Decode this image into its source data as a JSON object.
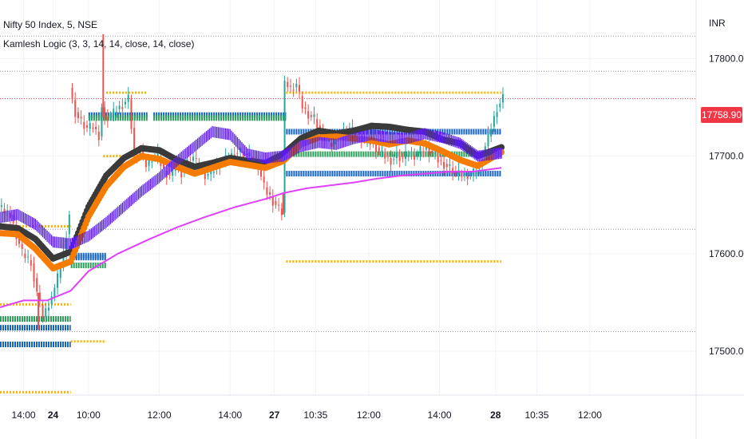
{
  "header": {
    "symbol_line": "Nifty 50 Index, 5, NSE",
    "indicator_line": "Kamlesh Logic (3, 3, 14, 14, close, 14, close)",
    "currency": "INR"
  },
  "last_price": {
    "label": "17758.90",
    "value": 17758.9,
    "color": "#f23645"
  },
  "colors": {
    "up_candle": "#26a69a",
    "down_candle": "#ef5350",
    "grid": "#f0f3fa",
    "axis_text": "#131722",
    "dotted_level": "#9598a1"
  },
  "chart_data": {
    "type": "line",
    "title": "",
    "ylabel": "",
    "xlabel": "",
    "ylim": [
      17455,
      17860
    ],
    "y_ticks": [
      17500,
      17600,
      17700,
      17800
    ],
    "y_tick_labels": [
      "17500.00",
      "17600.00",
      "17700.00",
      "17800.00"
    ],
    "x_tick_labels": [
      {
        "label": "14:00",
        "x": 8
      },
      {
        "label": "24",
        "x": 18
      },
      {
        "label": "10:00",
        "x": 30
      },
      {
        "label": "12:00",
        "x": 54
      },
      {
        "label": "14:00",
        "x": 78
      },
      {
        "label": "27",
        "x": 93
      },
      {
        "label": "10:35",
        "x": 107
      },
      {
        "label": "12:00",
        "x": 125
      },
      {
        "label": "14:00",
        "x": 149
      },
      {
        "label": "28",
        "x": 168
      },
      {
        "label": "10:35",
        "x": 182
      },
      {
        "label": "12:00",
        "x": 200
      }
    ],
    "dotted_level_lines": [
      17823,
      17787,
      17625,
      17520
    ],
    "x_visible_range": [
      0,
      236
    ],
    "candles_end": 172,
    "series": [
      {
        "name": "",
        "color": "#3a3a3a",
        "style": "dots",
        "points": [
          [
            0,
            17628
          ],
          [
            6,
            17626
          ],
          [
            12,
            17615
          ],
          [
            18,
            17595
          ],
          [
            24,
            17602
          ],
          [
            30,
            17648
          ],
          [
            36,
            17680
          ],
          [
            42,
            17698
          ],
          [
            48,
            17708
          ],
          [
            54,
            17706
          ],
          [
            60,
            17696
          ],
          [
            66,
            17689
          ],
          [
            72,
            17693
          ],
          [
            78,
            17698
          ],
          [
            84,
            17695
          ],
          [
            90,
            17693
          ],
          [
            96,
            17702
          ],
          [
            102,
            17718
          ],
          [
            108,
            17726
          ],
          [
            114,
            17723
          ],
          [
            120,
            17726
          ],
          [
            126,
            17731
          ],
          [
            132,
            17730
          ],
          [
            138,
            17727
          ],
          [
            144,
            17725
          ],
          [
            150,
            17717
          ],
          [
            156,
            17713
          ],
          [
            162,
            17700
          ],
          [
            170,
            17709
          ]
        ]
      },
      {
        "name": "",
        "color": "#f57c00",
        "style": "dots",
        "points": [
          [
            0,
            17621
          ],
          [
            6,
            17620
          ],
          [
            12,
            17605
          ],
          [
            18,
            17585
          ],
          [
            24,
            17592
          ],
          [
            30,
            17638
          ],
          [
            36,
            17669
          ],
          [
            42,
            17689
          ],
          [
            48,
            17700
          ],
          [
            54,
            17697
          ],
          [
            60,
            17689
          ],
          [
            66,
            17682
          ],
          [
            72,
            17688
          ],
          [
            78,
            17694
          ],
          [
            84,
            17691
          ],
          [
            90,
            17688
          ],
          [
            96,
            17695
          ],
          [
            102,
            17712
          ],
          [
            108,
            17719
          ],
          [
            114,
            17720
          ],
          [
            120,
            17718
          ],
          [
            126,
            17716
          ],
          [
            132,
            17712
          ],
          [
            138,
            17716
          ],
          [
            144,
            17713
          ],
          [
            150,
            17705
          ],
          [
            156,
            17696
          ],
          [
            162,
            17690
          ],
          [
            170,
            17704
          ]
        ]
      },
      {
        "name": "",
        "color": "#5d1ef0",
        "style": "dots",
        "points": [
          [
            0,
            17637
          ],
          [
            6,
            17640
          ],
          [
            12,
            17630
          ],
          [
            18,
            17612
          ],
          [
            24,
            17610
          ],
          [
            30,
            17618
          ],
          [
            36,
            17632
          ],
          [
            42,
            17648
          ],
          [
            48,
            17664
          ],
          [
            54,
            17678
          ],
          [
            60,
            17695
          ],
          [
            66,
            17710
          ],
          [
            72,
            17725
          ],
          [
            78,
            17722
          ],
          [
            84,
            17702
          ],
          [
            90,
            17698
          ],
          [
            96,
            17700
          ],
          [
            102,
            17710
          ],
          [
            108,
            17714
          ],
          [
            114,
            17712
          ],
          [
            120,
            17718
          ],
          [
            126,
            17722
          ],
          [
            132,
            17719
          ],
          [
            138,
            17718
          ],
          [
            144,
            17723
          ],
          [
            150,
            17719
          ],
          [
            156,
            17713
          ],
          [
            162,
            17700
          ],
          [
            170,
            17703
          ]
        ]
      },
      {
        "name": "",
        "color": "#e040fb",
        "style": "line",
        "points": [
          [
            0,
            17545
          ],
          [
            8,
            17552
          ],
          [
            16,
            17552
          ],
          [
            24,
            17562
          ],
          [
            30,
            17582
          ],
          [
            40,
            17600
          ],
          [
            50,
            17614
          ],
          [
            60,
            17627
          ],
          [
            70,
            17638
          ],
          [
            80,
            17648
          ],
          [
            90,
            17656
          ],
          [
            96,
            17662
          ],
          [
            104,
            17667
          ],
          [
            112,
            17670
          ],
          [
            120,
            17673
          ],
          [
            128,
            17677
          ],
          [
            136,
            17680
          ],
          [
            144,
            17682
          ],
          [
            152,
            17684
          ],
          [
            160,
            17684
          ],
          [
            170,
            17688
          ]
        ]
      }
    ],
    "level_segments": [
      {
        "color": "#ffb300",
        "y": 17765,
        "x0": 36,
        "x1": 50
      },
      {
        "color": "#1565c0",
        "y": 17742,
        "x0": 30,
        "x1": 50
      },
      {
        "color": "#2e9e5b",
        "y": 17739,
        "x0": 30,
        "x1": 50
      },
      {
        "color": "#ffb300",
        "y": 17700,
        "x0": 35,
        "x1": 50
      },
      {
        "color": "#ffb300",
        "y": 17765,
        "x0": 97,
        "x1": 170
      },
      {
        "color": "#1565c0",
        "y": 17742,
        "x0": 52,
        "x1": 97
      },
      {
        "color": "#2e9e5b",
        "y": 17739,
        "x0": 52,
        "x1": 97
      },
      {
        "color": "#1565c0",
        "y": 17725,
        "x0": 97,
        "x1": 170
      },
      {
        "color": "#2e9e5b",
        "y": 17702,
        "x0": 97,
        "x1": 170
      },
      {
        "color": "#1565c0",
        "y": 17682,
        "x0": 97,
        "x1": 170
      },
      {
        "color": "#ffb300",
        "y": 17592,
        "x0": 97,
        "x1": 170
      },
      {
        "color": "#ffb300",
        "y": 17628,
        "x0": 0,
        "x1": 24
      },
      {
        "color": "#1565c0",
        "y": 17596,
        "x0": 24,
        "x1": 36
      },
      {
        "color": "#2e9e5b",
        "y": 17588,
        "x0": 24,
        "x1": 36
      },
      {
        "color": "#1565c0",
        "y": 17598,
        "x0": 24,
        "x1": 36
      },
      {
        "color": "#ffb300",
        "y": 17548,
        "x0": 0,
        "x1": 24
      },
      {
        "color": "#2e9e5b",
        "y": 17533,
        "x0": 0,
        "x1": 24
      },
      {
        "color": "#1565c0",
        "y": 17524,
        "x0": 0,
        "x1": 24
      },
      {
        "color": "#1565c0",
        "y": 17507,
        "x0": 0,
        "x1": 24
      },
      {
        "color": "#ffb300",
        "y": 17510,
        "x0": 24,
        "x1": 36
      },
      {
        "color": "#ffb300",
        "y": 17458,
        "x0": 0,
        "x1": 24
      }
    ],
    "price_path": [
      [
        0,
        17648
      ],
      [
        4,
        17640
      ],
      [
        8,
        17600
      ],
      [
        11,
        17590
      ],
      [
        13,
        17560
      ],
      [
        15,
        17535
      ],
      [
        18,
        17555
      ],
      [
        20,
        17575
      ],
      [
        22,
        17600
      ],
      [
        24,
        17640
      ],
      [
        24,
        17770
      ],
      [
        26,
        17745
      ],
      [
        28,
        17735
      ],
      [
        30,
        17728
      ],
      [
        32,
        17730
      ],
      [
        34,
        17720
      ],
      [
        35,
        17750
      ],
      [
        36,
        17740
      ],
      [
        38,
        17742
      ],
      [
        40,
        17748
      ],
      [
        44,
        17758
      ],
      [
        46,
        17700
      ],
      [
        48,
        17705
      ],
      [
        50,
        17690
      ],
      [
        52,
        17698
      ],
      [
        54,
        17700
      ],
      [
        56,
        17685
      ],
      [
        58,
        17680
      ],
      [
        60,
        17690
      ],
      [
        62,
        17683
      ],
      [
        64,
        17693
      ],
      [
        66,
        17698
      ],
      [
        68,
        17688
      ],
      [
        70,
        17680
      ],
      [
        72,
        17683
      ],
      [
        74,
        17690
      ],
      [
        76,
        17695
      ],
      [
        78,
        17700
      ],
      [
        80,
        17703
      ],
      [
        82,
        17705
      ],
      [
        84,
        17700
      ],
      [
        86,
        17698
      ],
      [
        88,
        17690
      ],
      [
        90,
        17668
      ],
      [
        92,
        17658
      ],
      [
        94,
        17650
      ],
      [
        96,
        17642
      ],
      [
        97,
        17776
      ],
      [
        99,
        17768
      ],
      [
        101,
        17773
      ],
      [
        103,
        17750
      ],
      [
        105,
        17742
      ],
      [
        107,
        17738
      ],
      [
        109,
        17725
      ],
      [
        111,
        17715
      ],
      [
        113,
        17712
      ],
      [
        115,
        17720
      ],
      [
        117,
        17724
      ],
      [
        119,
        17728
      ],
      [
        121,
        17722
      ],
      [
        123,
        17718
      ],
      [
        125,
        17715
      ],
      [
        127,
        17713
      ],
      [
        129,
        17705
      ],
      [
        131,
        17700
      ],
      [
        133,
        17696
      ],
      [
        135,
        17700
      ],
      [
        137,
        17697
      ],
      [
        139,
        17702
      ],
      [
        141,
        17700
      ],
      [
        143,
        17705
      ],
      [
        145,
        17708
      ],
      [
        147,
        17703
      ],
      [
        149,
        17696
      ],
      [
        151,
        17692
      ],
      [
        153,
        17688
      ],
      [
        155,
        17682
      ],
      [
        157,
        17680
      ],
      [
        159,
        17680
      ],
      [
        161,
        17682
      ],
      [
        163,
        17692
      ],
      [
        165,
        17710
      ],
      [
        167,
        17730
      ],
      [
        169,
        17750
      ],
      [
        171,
        17760
      ]
    ],
    "spikes": [
      [
        35,
        17825,
        17740
      ],
      [
        13,
        17560,
        17522
      ],
      [
        96,
        17662,
        17640
      ]
    ]
  }
}
